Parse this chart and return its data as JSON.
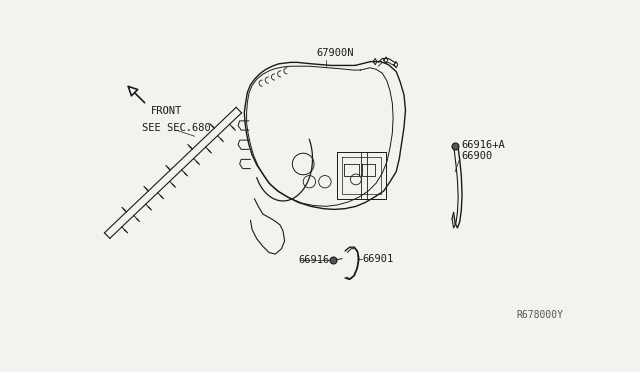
{
  "bg_color": "#f2f2ee",
  "line_color": "#1a1a1a",
  "text_color": "#1a1a1a",
  "diagram_id": "R678000Y",
  "labels": {
    "front": "FRONT",
    "see_sec": "SEE SEC.680",
    "p67900N": "67900N",
    "p66916A": "66916+A",
    "p66900": "66900",
    "p66916": "66916",
    "p66901": "66901"
  },
  "font_size": 7.5,
  "font_size_id": 7.0
}
